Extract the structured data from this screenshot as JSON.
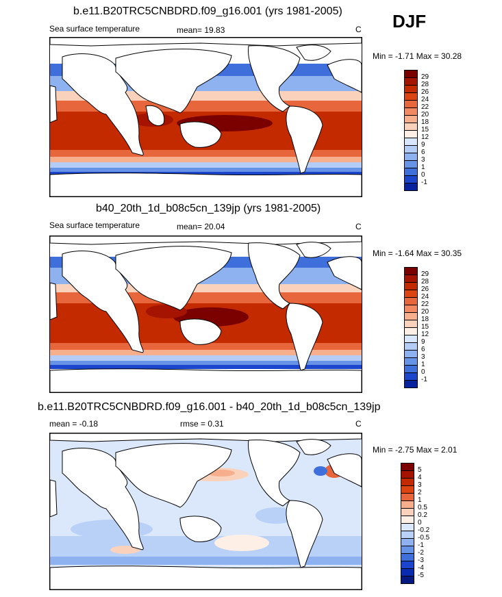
{
  "season": "DJF",
  "panels": [
    {
      "title": "b.e11.B20TRC5CNBDRD.f09_g16.001 (yrs 1981-2005)",
      "left_label": "Sea surface temperature",
      "center_label": "mean=  19.83",
      "units": "C",
      "minmax": "Min =  -1.71 Max =  30.28",
      "levels": [
        "29",
        "28",
        "26",
        "24",
        "22",
        "20",
        "18",
        "15",
        "12",
        "9",
        "6",
        "3",
        "1",
        "0",
        "-1"
      ],
      "colors": [
        "#7b0000",
        "#a51400",
        "#c42a00",
        "#dc4512",
        "#e8663c",
        "#f18a62",
        "#f6ae8d",
        "#fad2bc",
        "#fdefe6",
        "#d8e6fb",
        "#b3cdf6",
        "#8eb2f0",
        "#6793e6",
        "#3e6fdb",
        "#1a45cc",
        "#07229e"
      ]
    },
    {
      "title": "b40_20th_1d_b08c5cn_139jp (yrs 1981-2005)",
      "left_label": "Sea surface temperature",
      "center_label": "mean=  20.04",
      "units": "C",
      "minmax": "Min =  -1.64 Max =  30.35",
      "levels": [
        "29",
        "28",
        "26",
        "24",
        "22",
        "20",
        "18",
        "15",
        "12",
        "9",
        "6",
        "3",
        "1",
        "0",
        "-1"
      ],
      "colors": [
        "#7b0000",
        "#a51400",
        "#c42a00",
        "#dc4512",
        "#e8663c",
        "#f18a62",
        "#f6ae8d",
        "#fad2bc",
        "#fdefe6",
        "#d8e6fb",
        "#b3cdf6",
        "#8eb2f0",
        "#6793e6",
        "#3e6fdb",
        "#1a45cc",
        "#07229e"
      ]
    },
    {
      "title": "b.e11.B20TRC5CNBDRD.f09_g16.001 - b40_20th_1d_b08c5cn_139jp",
      "left_label": "mean =  -0.18",
      "center_label": "rmse =   0.31",
      "units": "C",
      "minmax": "Min =  -2.75 Max =   2.01",
      "levels": [
        "5",
        "4",
        "3",
        "2",
        "1",
        "0.5",
        "0.2",
        "0",
        "-0.2",
        "-0.5",
        "-1",
        "-2",
        "-3",
        "-4",
        "-5"
      ],
      "colors": [
        "#7b0000",
        "#a51400",
        "#c42a00",
        "#dc4512",
        "#e8663c",
        "#f6ae8d",
        "#fad2bc",
        "#fdefe6",
        "#dbe8fb",
        "#b9d0f7",
        "#8eb2f0",
        "#6793e6",
        "#3e6fdb",
        "#1a45cc",
        "#0a2ab0",
        "#041a80"
      ]
    }
  ]
}
